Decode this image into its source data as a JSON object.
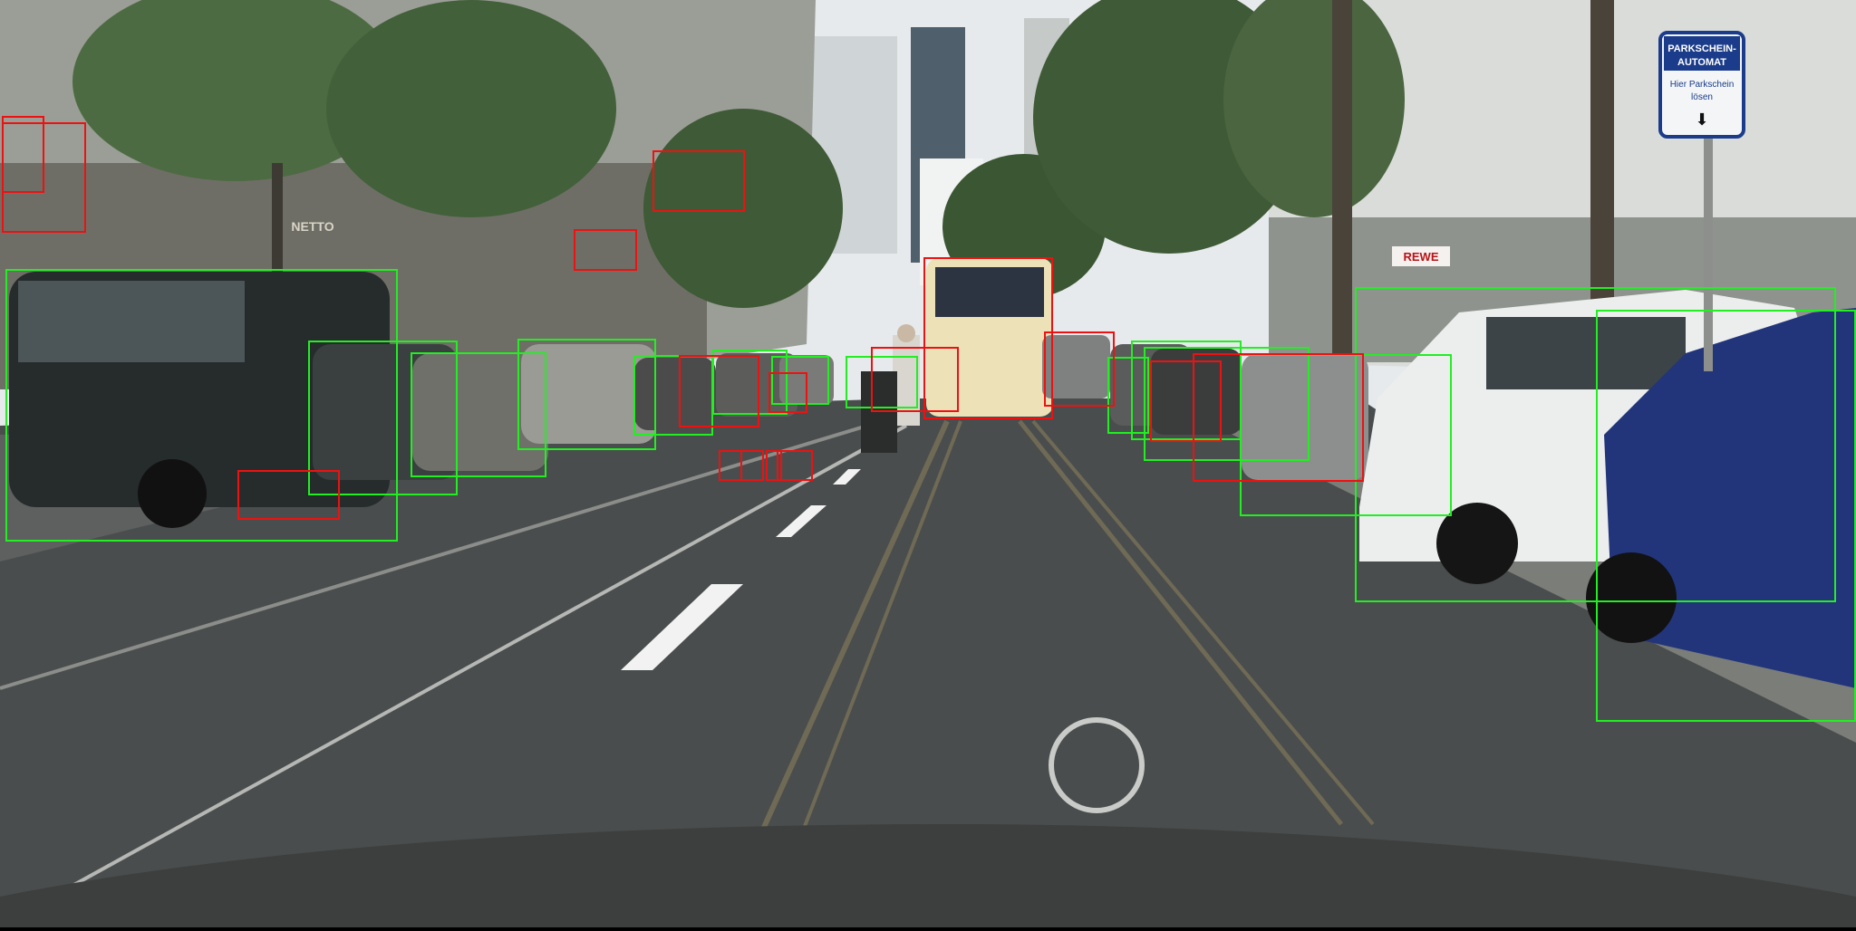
{
  "scene": {
    "description_label": "street scene with bounding boxes",
    "colors": {
      "sky": "#e7eaec",
      "road": "#4a4d4d",
      "sidewalk_right": "#7a7d78",
      "building_left": "#9b9e96",
      "building_right": "#d9dcd8",
      "tree": "#3f5a36",
      "tram_rail": "#6f6a55",
      "lane_marking": "#f2f2f2",
      "hood": "#3c3f3d",
      "bus": "#ece1b7",
      "white_car": "#eceeee",
      "blue_car": "#22357a",
      "dark_van": "#262b2c",
      "box_green": "#22ee22",
      "box_red": "#ee1111"
    }
  },
  "signs": {
    "parking": {
      "line1": "PARKSCHEIN-",
      "line2": "AUTOMAT",
      "line3": "Hier Parkschein",
      "line4": "lösen"
    },
    "shop": "REWE",
    "store_left": "NETTO"
  }
}
